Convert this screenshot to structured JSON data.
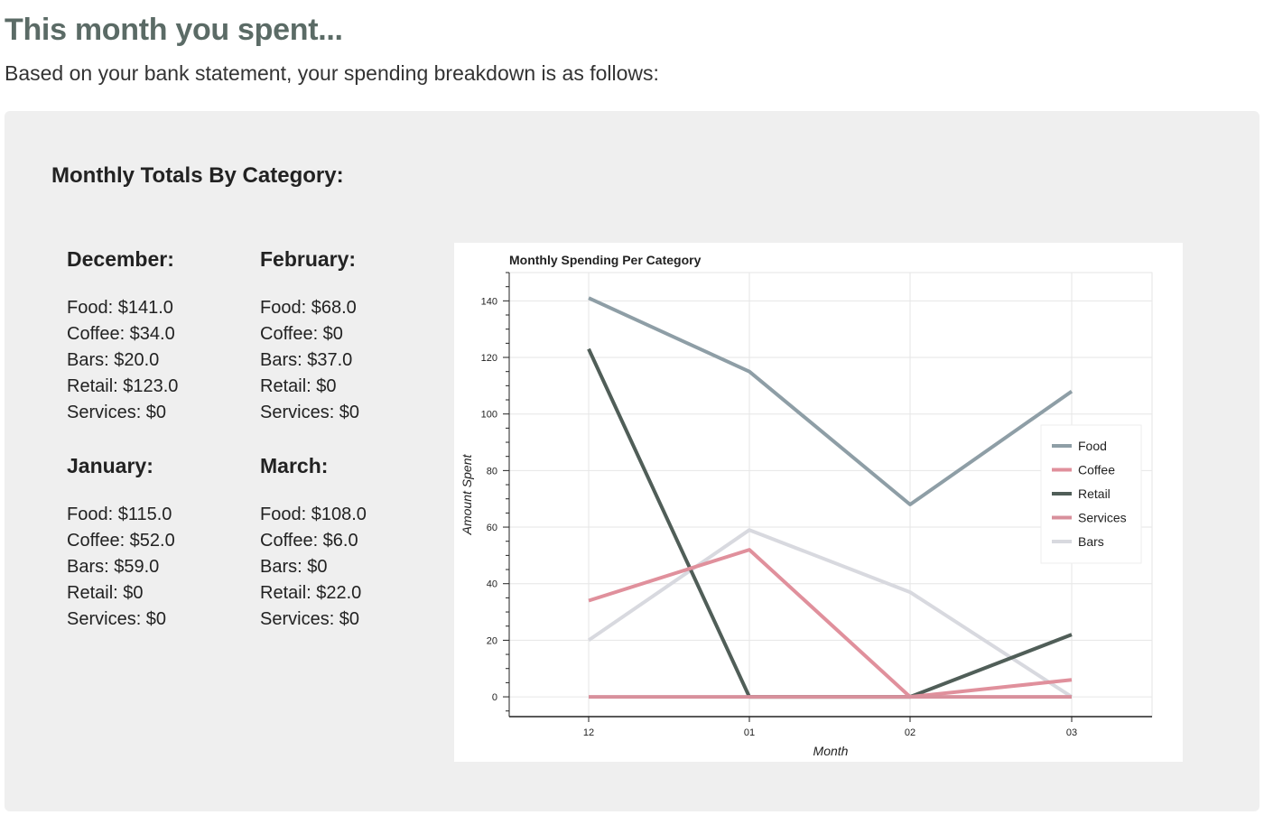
{
  "header": {
    "title": "This month you spent...",
    "subtitle": "Based on your bank statement, your spending breakdown is as follows:"
  },
  "panel": {
    "title": "Monthly Totals By Category:"
  },
  "months": [
    {
      "title": "December:",
      "lines": [
        "Food: $141.0",
        "Coffee: $34.0",
        "Bars: $20.0",
        "Retail: $123.0",
        "Services: $0"
      ]
    },
    {
      "title": "February:",
      "lines": [
        "Food: $68.0",
        "Coffee: $0",
        "Bars: $37.0",
        "Retail: $0",
        "Services: $0"
      ]
    },
    {
      "title": "January:",
      "lines": [
        "Food: $115.0",
        "Coffee: $52.0",
        "Bars: $59.0",
        "Retail: $0",
        "Services: $0"
      ]
    },
    {
      "title": "March:",
      "lines": [
        "Food: $108.0",
        "Coffee: $6.0",
        "Bars: $0",
        "Retail: $22.0",
        "Services: $0"
      ]
    }
  ],
  "chart_data": {
    "type": "line",
    "title": "Monthly Spending Per Category",
    "xlabel": "Month",
    "ylabel": "Amount Spent",
    "categories": [
      "12",
      "01",
      "02",
      "03"
    ],
    "ylim": [
      -7,
      150
    ],
    "yticks": [
      0,
      20,
      40,
      60,
      80,
      100,
      120,
      140
    ],
    "grid": true,
    "legend_position": "right",
    "series": [
      {
        "name": "Food",
        "color": "#8e9ea6",
        "values": [
          141,
          115,
          68,
          108
        ]
      },
      {
        "name": "Coffee",
        "color": "#e0909c",
        "values": [
          34,
          52,
          0,
          6
        ]
      },
      {
        "name": "Retail",
        "color": "#505e58",
        "values": [
          123,
          0,
          0,
          22
        ]
      },
      {
        "name": "Services",
        "color": "#d8909c",
        "values": [
          0,
          0,
          0,
          0
        ]
      },
      {
        "name": "Bars",
        "color": "#d8d9df",
        "values": [
          20,
          59,
          37,
          0
        ]
      }
    ],
    "draw_order": [
      "Bars",
      "Food",
      "Retail",
      "Coffee",
      "Services"
    ]
  }
}
